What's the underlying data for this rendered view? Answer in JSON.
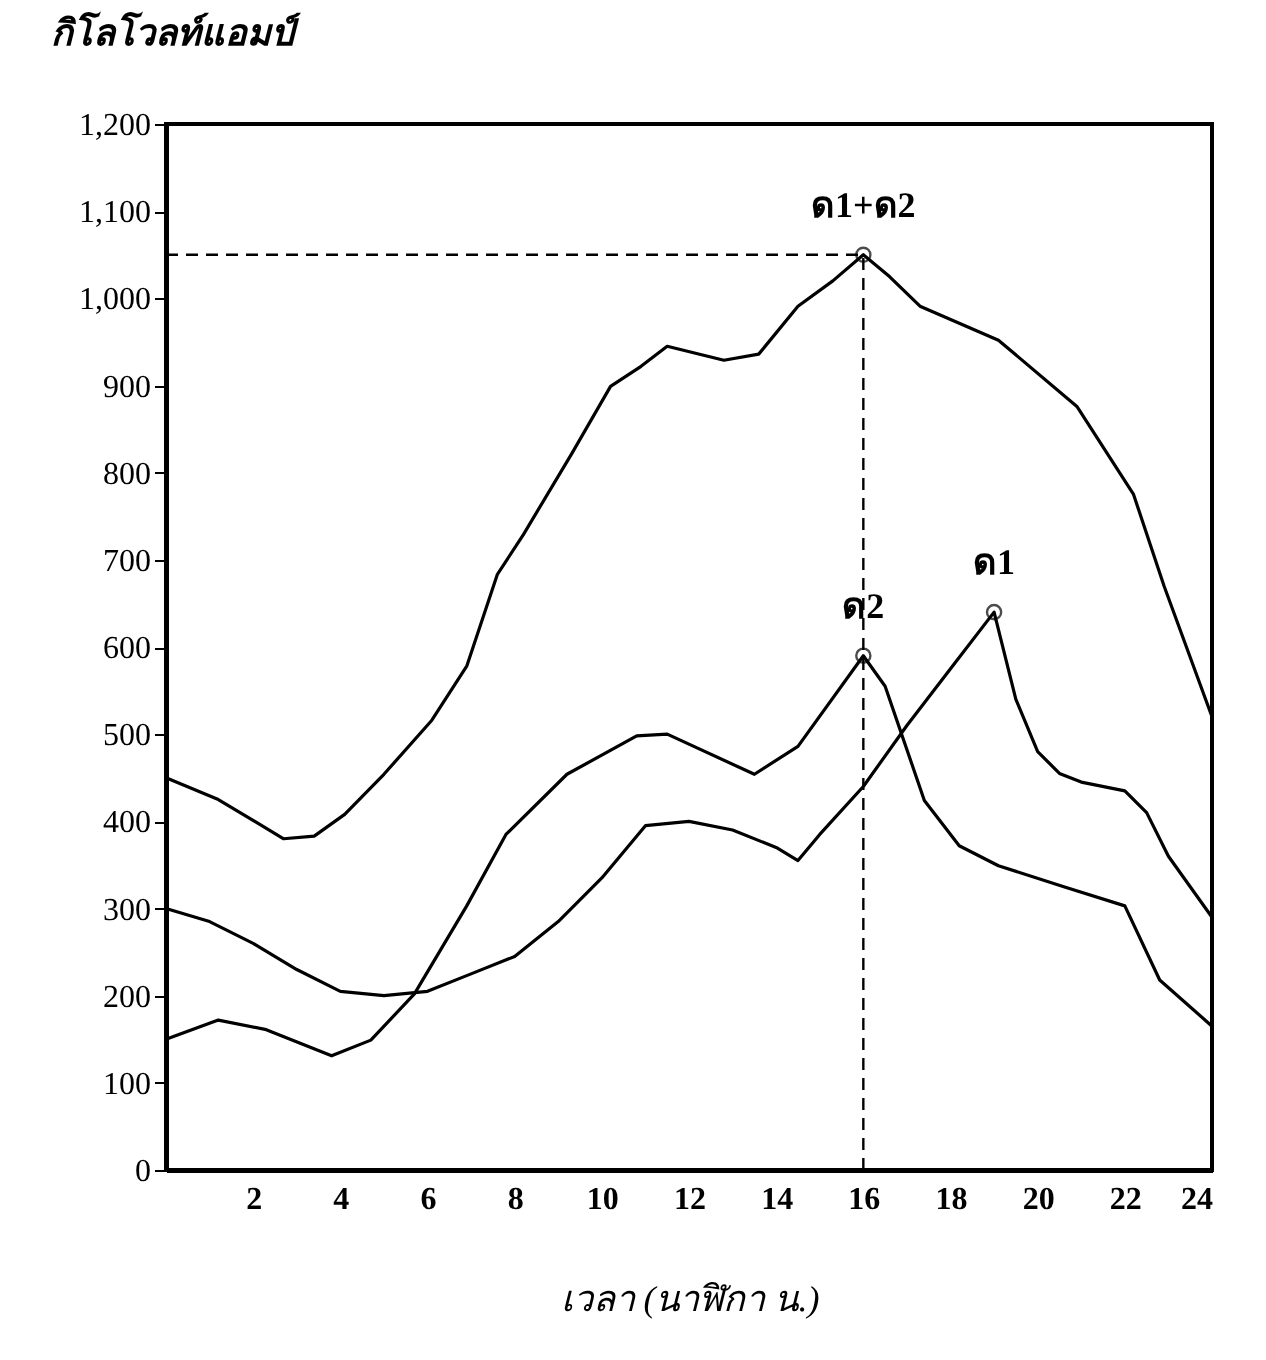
{
  "chart_data": {
    "type": "line",
    "xlabel": "เวลา (นาฬิกา น.)",
    "ylabel": "กิโลโวลท์แอมป์",
    "xlim": [
      0,
      24
    ],
    "xticks": [
      2,
      4,
      6,
      8,
      10,
      12,
      14,
      16,
      18,
      20,
      22,
      24
    ],
    "ylim": [
      0,
      1200
    ],
    "yticks": [
      0,
      100,
      200,
      300,
      400,
      500,
      600,
      700,
      800,
      900,
      {
        "value": 1000,
        "label": "1,000"
      },
      {
        "value": 1100,
        "label": "1,100"
      },
      {
        "value": 1200,
        "label": "1,200"
      }
    ],
    "grid": false,
    "legend": false,
    "marker": "none",
    "line_style": "solid",
    "series": [
      {
        "name": "ด1+ด2",
        "color": "#000000",
        "x": [
          0,
          1.2,
          2.7,
          3.4,
          4.1,
          5,
          6.1,
          6.9,
          7.6,
          8.2,
          9.3,
          10.2,
          10.9,
          11.5,
          12.8,
          13.6,
          14.5,
          15.3,
          16,
          16.6,
          17.3,
          19.1,
          20.9,
          22.2,
          22.9,
          24
        ],
        "values": [
          450,
          425,
          380,
          383,
          408,
          454,
          516,
          578,
          683,
          729,
          821,
          899,
          922,
          945,
          929,
          936,
          991,
          1020,
          1050,
          1025,
          991,
          952,
          876,
          775,
          670,
          520
        ]
      },
      {
        "name": "ด1",
        "color": "#000000",
        "x": [
          0,
          1,
          2,
          3,
          4,
          5,
          6,
          7,
          8,
          9,
          10,
          11,
          12,
          13,
          14,
          14.5,
          15,
          16,
          17,
          18,
          19,
          19.5,
          20,
          20.5,
          21,
          22,
          22.5,
          23,
          24
        ],
        "values": [
          300,
          285,
          260,
          230,
          205,
          200,
          205,
          225,
          245,
          285,
          335,
          395,
          400,
          390,
          370,
          355,
          385,
          440,
          510,
          575,
          640,
          540,
          480,
          455,
          445,
          435,
          410,
          360,
          290
        ]
      },
      {
        "name": "ด2",
        "color": "#000000",
        "x": [
          0,
          1.2,
          2.3,
          3.8,
          4.7,
          5.7,
          6.9,
          7.8,
          9.2,
          10.8,
          11.5,
          13.5,
          14.5,
          16,
          16.5,
          17.4,
          18.2,
          19.1,
          20.6,
          22,
          22.8,
          24
        ],
        "values": [
          150,
          172,
          161,
          131,
          149,
          202,
          303,
          385,
          454,
          498,
          500,
          454,
          486,
          590,
          555,
          424,
          372,
          349,
          325,
          303,
          218,
          165
        ]
      }
    ],
    "ref_lines": [
      {
        "axis": "y",
        "value": 1050,
        "line_style": "dashed"
      },
      {
        "axis": "x",
        "value": 16,
        "line_style": "dashed"
      }
    ]
  }
}
